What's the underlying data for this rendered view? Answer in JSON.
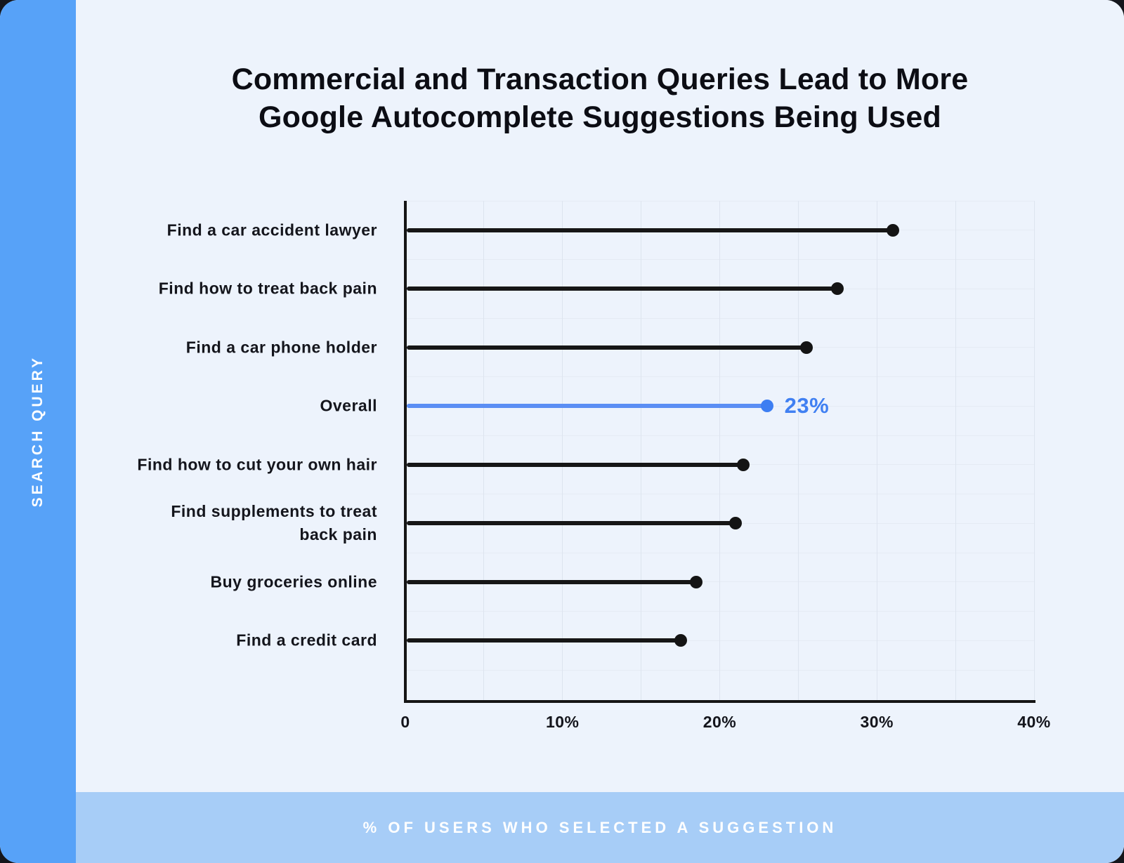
{
  "page": {
    "title_line1": "Commercial and Transaction Queries Lead to More",
    "title_line2": "Google Autocomplete Suggestions Being Used",
    "sidebar_label": "SEARCH QUERY",
    "footer_label": "% OF USERS WHO SELECTED A SUGGESTION"
  },
  "colors": {
    "sidebar_blue": "#57a2f8",
    "footer_bar_blue": "#a7cdf7",
    "card_background": "#edf3fc",
    "stem_black": "#161616",
    "dot_black": "#141414",
    "highlight_stem_blue": "#5b8ef4",
    "highlight_dot_blue": "#3d7ef2",
    "highlight_label_blue": "#4080f2",
    "axis_black": "#151515",
    "grid_vertical": "#dde4ef",
    "grid_horizontal": "#e5ebf4"
  },
  "chart_data": {
    "type": "bar",
    "subtype": "horizontal-lollipop",
    "title": "Commercial and Transaction Queries Lead to More Google Autocomplete Suggestions Being Used",
    "ylabel": "SEARCH QUERY",
    "xlabel": "% OF USERS WHO SELECTED A SUGGESTION",
    "categories": [
      "Find a car accident lawyer",
      "Find how to treat back pain",
      "Find a car phone holder",
      "Overall",
      "Find how to cut your own hair",
      "Find supplements to treat\nback pain",
      "Buy groceries online",
      "Find a credit card"
    ],
    "values": [
      31,
      27.5,
      25.5,
      23,
      21.5,
      21,
      18.5,
      17.5
    ],
    "highlight_index": 3,
    "highlight_label": "23%",
    "xlim": [
      0,
      40
    ],
    "x_ticks": [
      "0",
      "10%",
      "20%",
      "30%",
      "40%"
    ],
    "x_tick_values": [
      0,
      10,
      20,
      30,
      40
    ],
    "grid": true,
    "grid_minor_x_step": 5,
    "legend": "none"
  }
}
